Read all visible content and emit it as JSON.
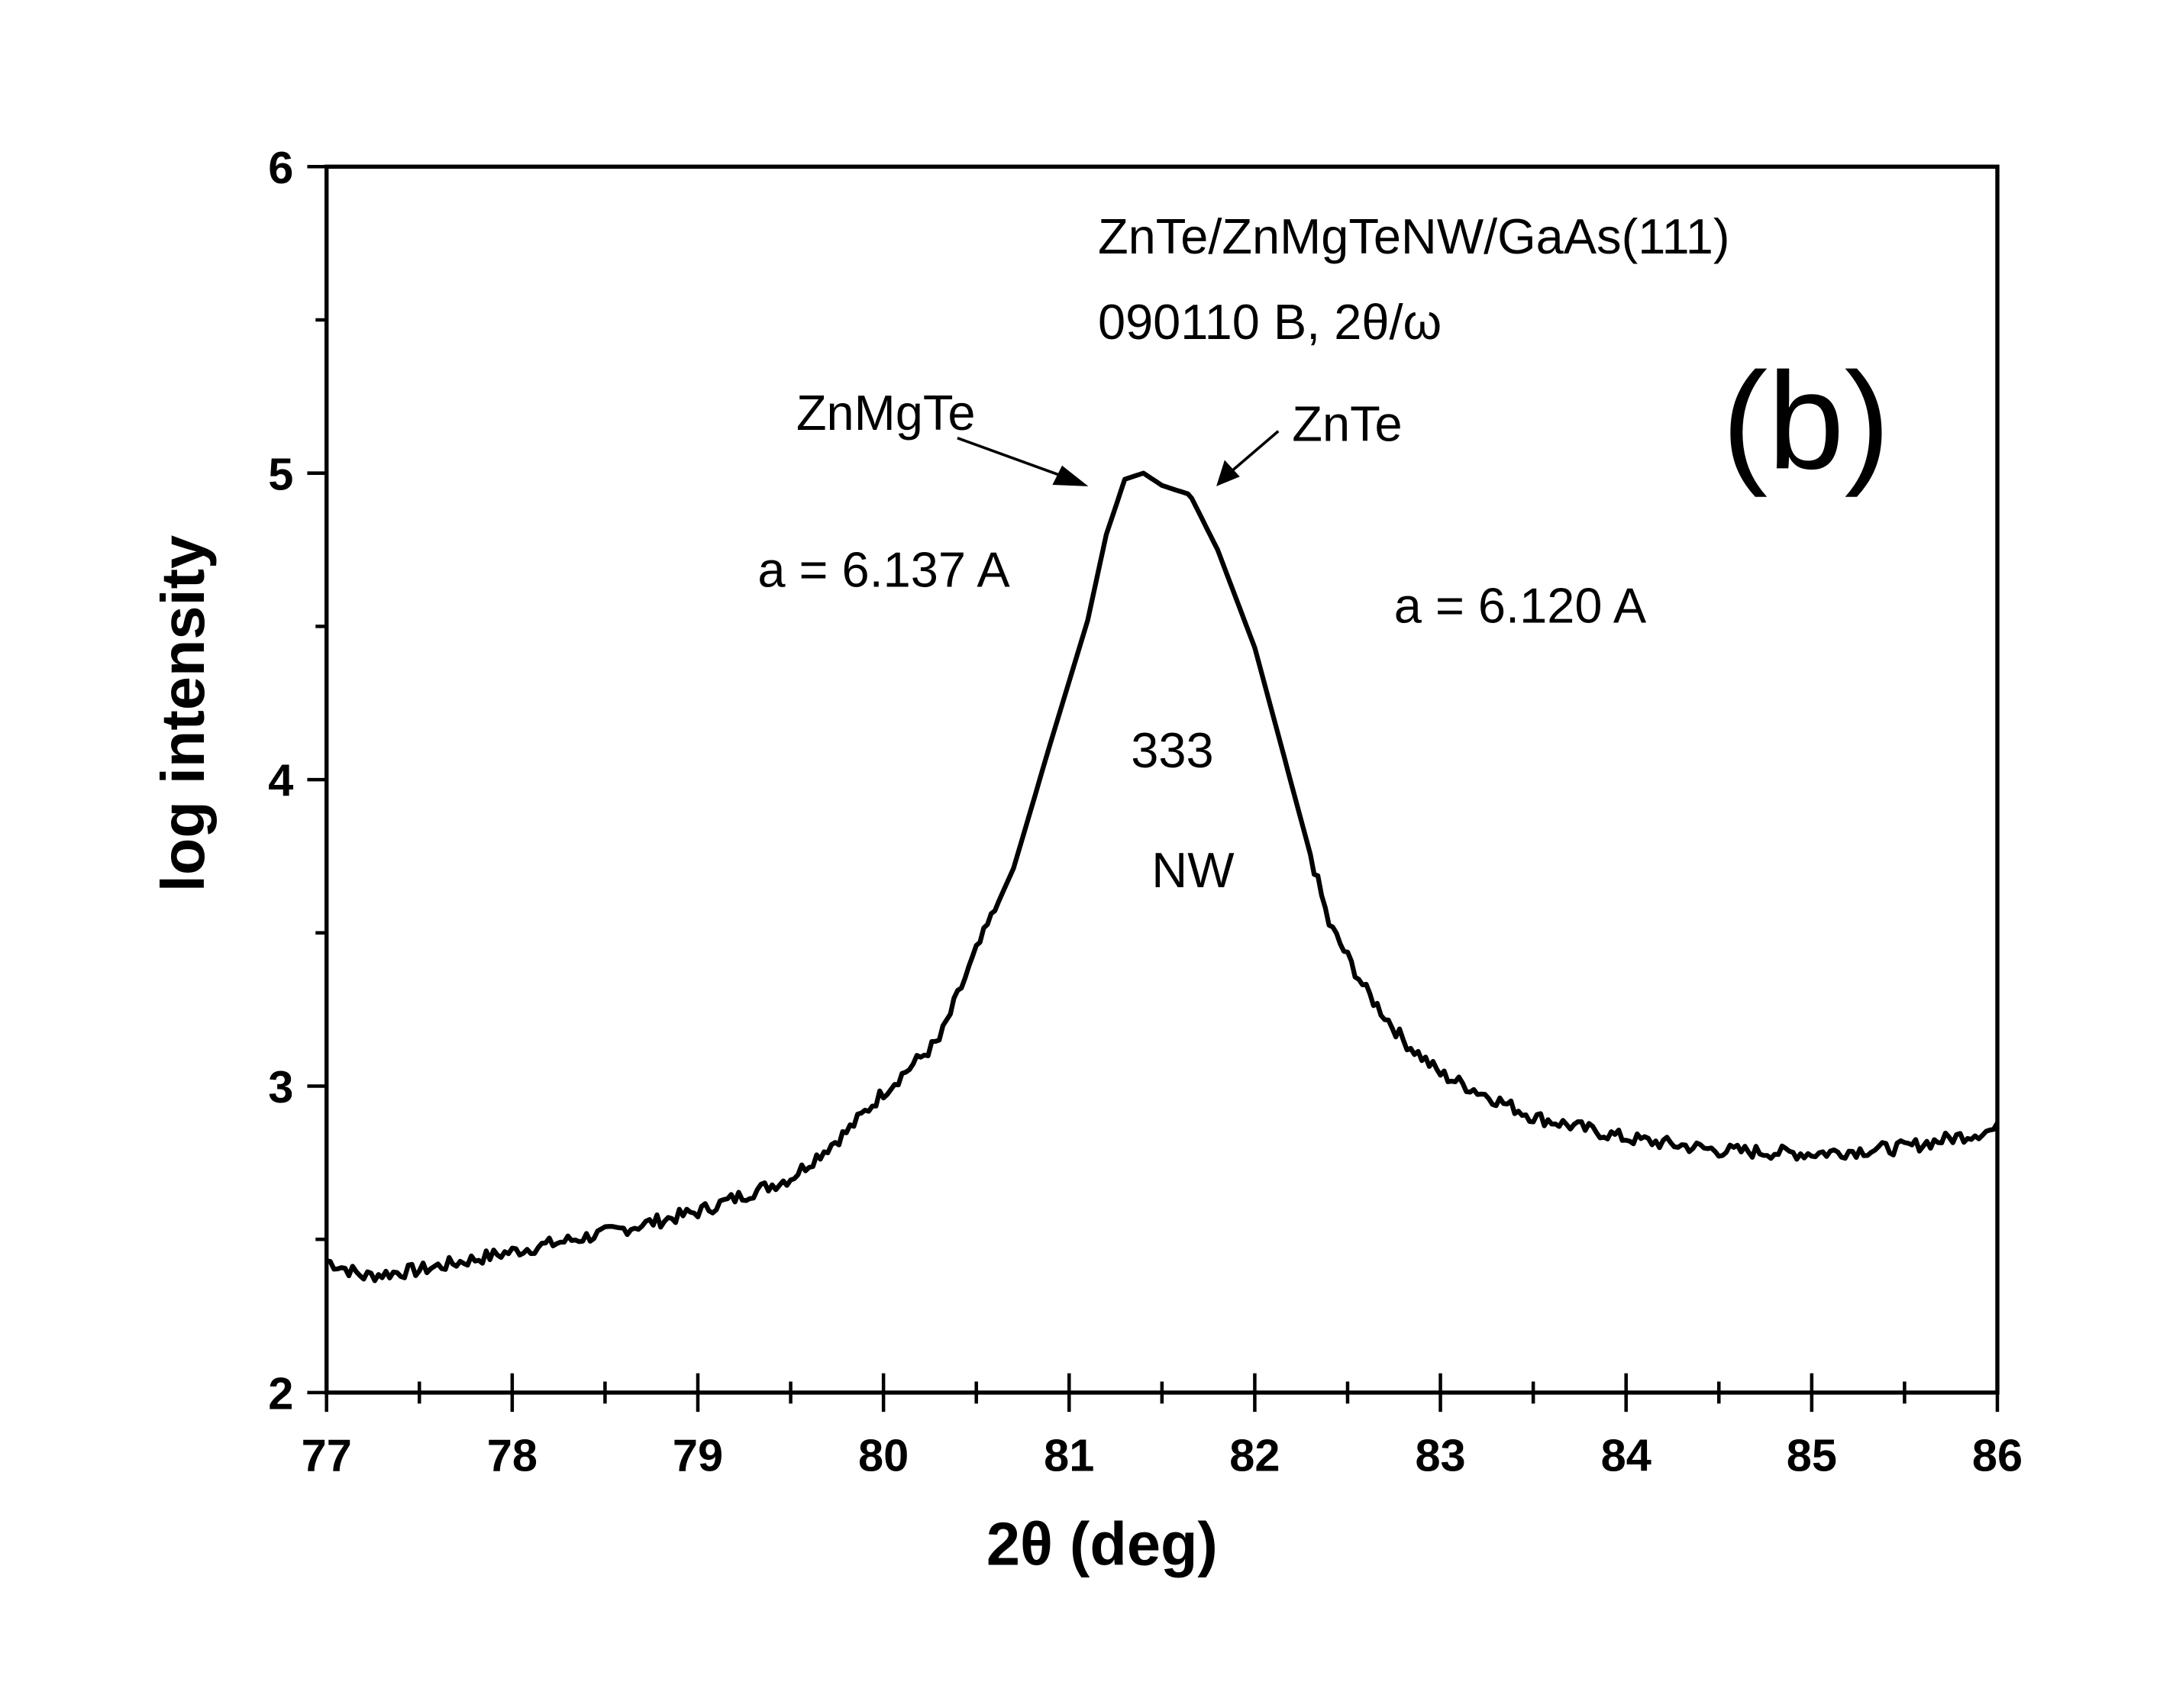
{
  "chart_data": {
    "type": "line",
    "title": "",
    "xlabel": "2θ (deg)",
    "ylabel": "log intensity",
    "xlim": [
      77,
      86
    ],
    "ylim": [
      2,
      6
    ],
    "xticks": [
      "77",
      "78",
      "79",
      "80",
      "81",
      "82",
      "83",
      "84",
      "85",
      "86"
    ],
    "yticks": [
      "2",
      "3",
      "4",
      "5",
      "6"
    ],
    "grid": false,
    "series": [
      {
        "name": "333 NW",
        "x": [
          77.0,
          77.2,
          77.5,
          78.0,
          78.5,
          79.0,
          79.5,
          79.8,
          80.0,
          80.3,
          80.5,
          80.7,
          80.9,
          81.1,
          81.2,
          81.3,
          81.4,
          81.5,
          81.65,
          81.8,
          82.0,
          82.2,
          82.4,
          82.6,
          82.8,
          83.0,
          83.5,
          84.0,
          84.5,
          85.0,
          85.5,
          86.0
        ],
        "y": [
          2.43,
          2.38,
          2.4,
          2.46,
          2.52,
          2.59,
          2.7,
          2.85,
          2.98,
          3.15,
          3.44,
          3.71,
          4.12,
          4.52,
          4.8,
          4.98,
          5.0,
          4.96,
          4.93,
          4.75,
          4.43,
          3.98,
          3.53,
          3.31,
          3.15,
          3.04,
          2.9,
          2.83,
          2.79,
          2.78,
          2.8,
          2.86
        ]
      }
    ],
    "annotations": {
      "sample": "ZnTe/ZnMgTeNW/GaAs(111)",
      "scan": "090110 B, 2θ/ω",
      "panel": "(b)",
      "peak_left": "ZnMgTe",
      "peak_right": "ZnTe",
      "a_left": "a = 6.137 A",
      "a_right": "a = 6.120 A",
      "reflection": "333",
      "nw": "NW"
    }
  }
}
